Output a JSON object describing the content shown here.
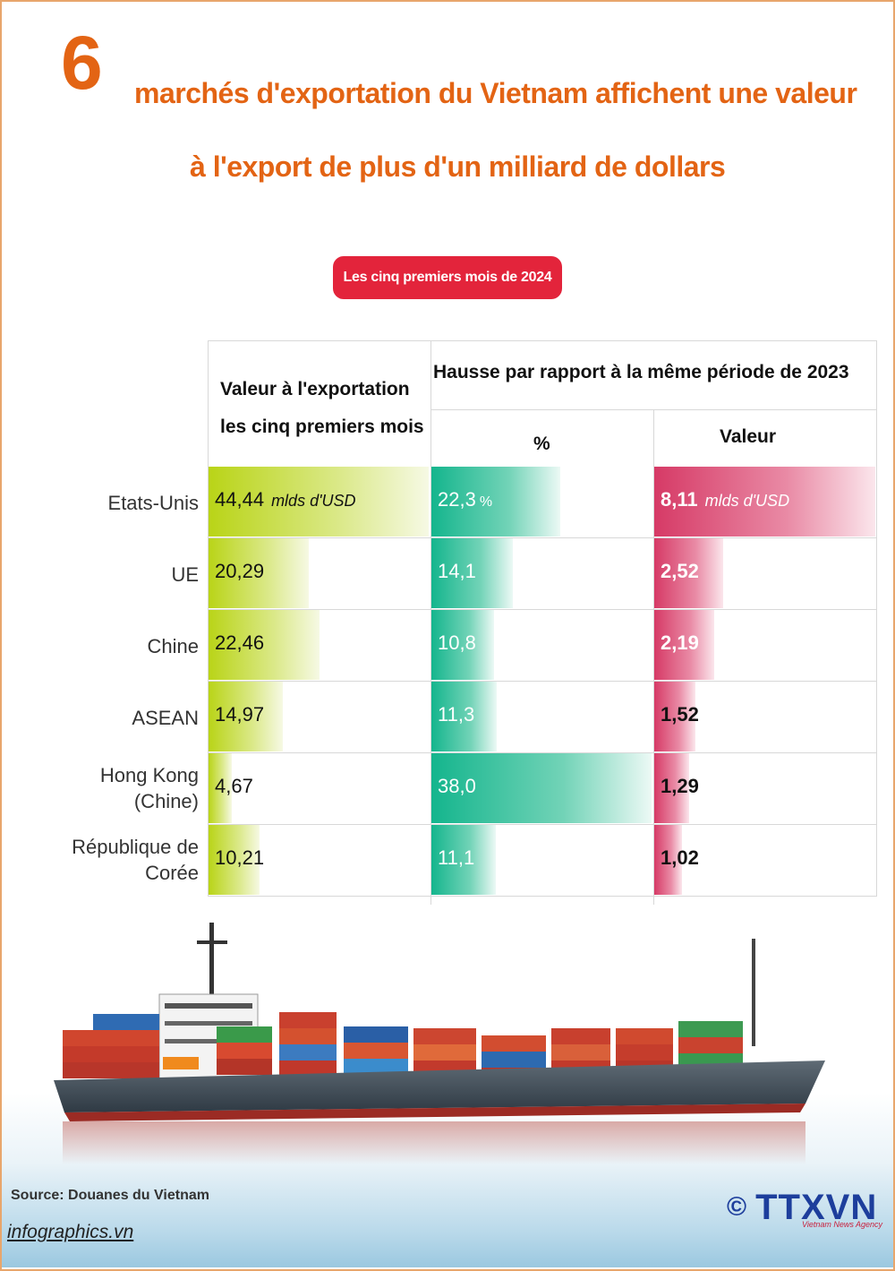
{
  "header": {
    "number": "6",
    "title_line1": "marchés d'exportation du Vietnam affichent une valeur",
    "title_line2": "à l'export de plus d'un milliard de dollars",
    "period_badge": "Les cinq premiers mois de 2024"
  },
  "columns": {
    "export_value_line1": "Valeur à l'exportation",
    "export_value_line2": "les cinq premiers mois",
    "increase": "Hausse par rapport à la même période de 2023",
    "percent": "%",
    "value": "Valeur"
  },
  "units": {
    "export": "mlds d'USD",
    "percent": "%",
    "value": "mlds d'USD"
  },
  "chart_data": {
    "type": "table",
    "title": "6 marchés d'exportation du Vietnam affichent une valeur à l'export de plus d'un milliard de dollars",
    "subtitle": "Les cinq premiers mois de 2024",
    "categories": [
      "Etats-Unis",
      "UE",
      "Chine",
      "ASEAN",
      "Hong Kong (Chine)",
      "République de Corée"
    ],
    "series": [
      {
        "name": "Valeur à l'exportation les cinq premiers mois",
        "unit": "mlds d'USD",
        "values": [
          44.44,
          20.29,
          22.46,
          14.97,
          4.67,
          10.21
        ],
        "labels": [
          "44,44",
          "20,29",
          "22,46",
          "14,97",
          "4,67",
          "10,21"
        ]
      },
      {
        "name": "Hausse %",
        "unit": "%",
        "values": [
          22.3,
          14.1,
          10.8,
          11.3,
          38.0,
          11.1
        ],
        "labels": [
          "22,3",
          "14,1",
          "10,8",
          "11,3",
          "38,0",
          "11,1"
        ]
      },
      {
        "name": "Hausse Valeur",
        "unit": "mlds d'USD",
        "values": [
          8.11,
          2.52,
          2.19,
          1.52,
          1.29,
          1.02
        ],
        "labels": [
          "8,11",
          "2,52",
          "2,19",
          "1,52",
          "1,29",
          "1,02"
        ]
      }
    ]
  },
  "rows": [
    {
      "label_line1": "Etats-Unis",
      "label_line2": ""
    },
    {
      "label_line1": "UE",
      "label_line2": ""
    },
    {
      "label_line1": "Chine",
      "label_line2": ""
    },
    {
      "label_line1": "ASEAN",
      "label_line2": ""
    },
    {
      "label_line1": "Hong Kong",
      "label_line2": "(Chine)"
    },
    {
      "label_line1": "République de",
      "label_line2": "Corée"
    }
  ],
  "footer": {
    "source": "Source: Douanes du Vietnam",
    "site": "infographics.vn",
    "logo_copyright": "©",
    "logo_text": "TTXVN",
    "logo_sub": "Vietnam News Agency"
  }
}
